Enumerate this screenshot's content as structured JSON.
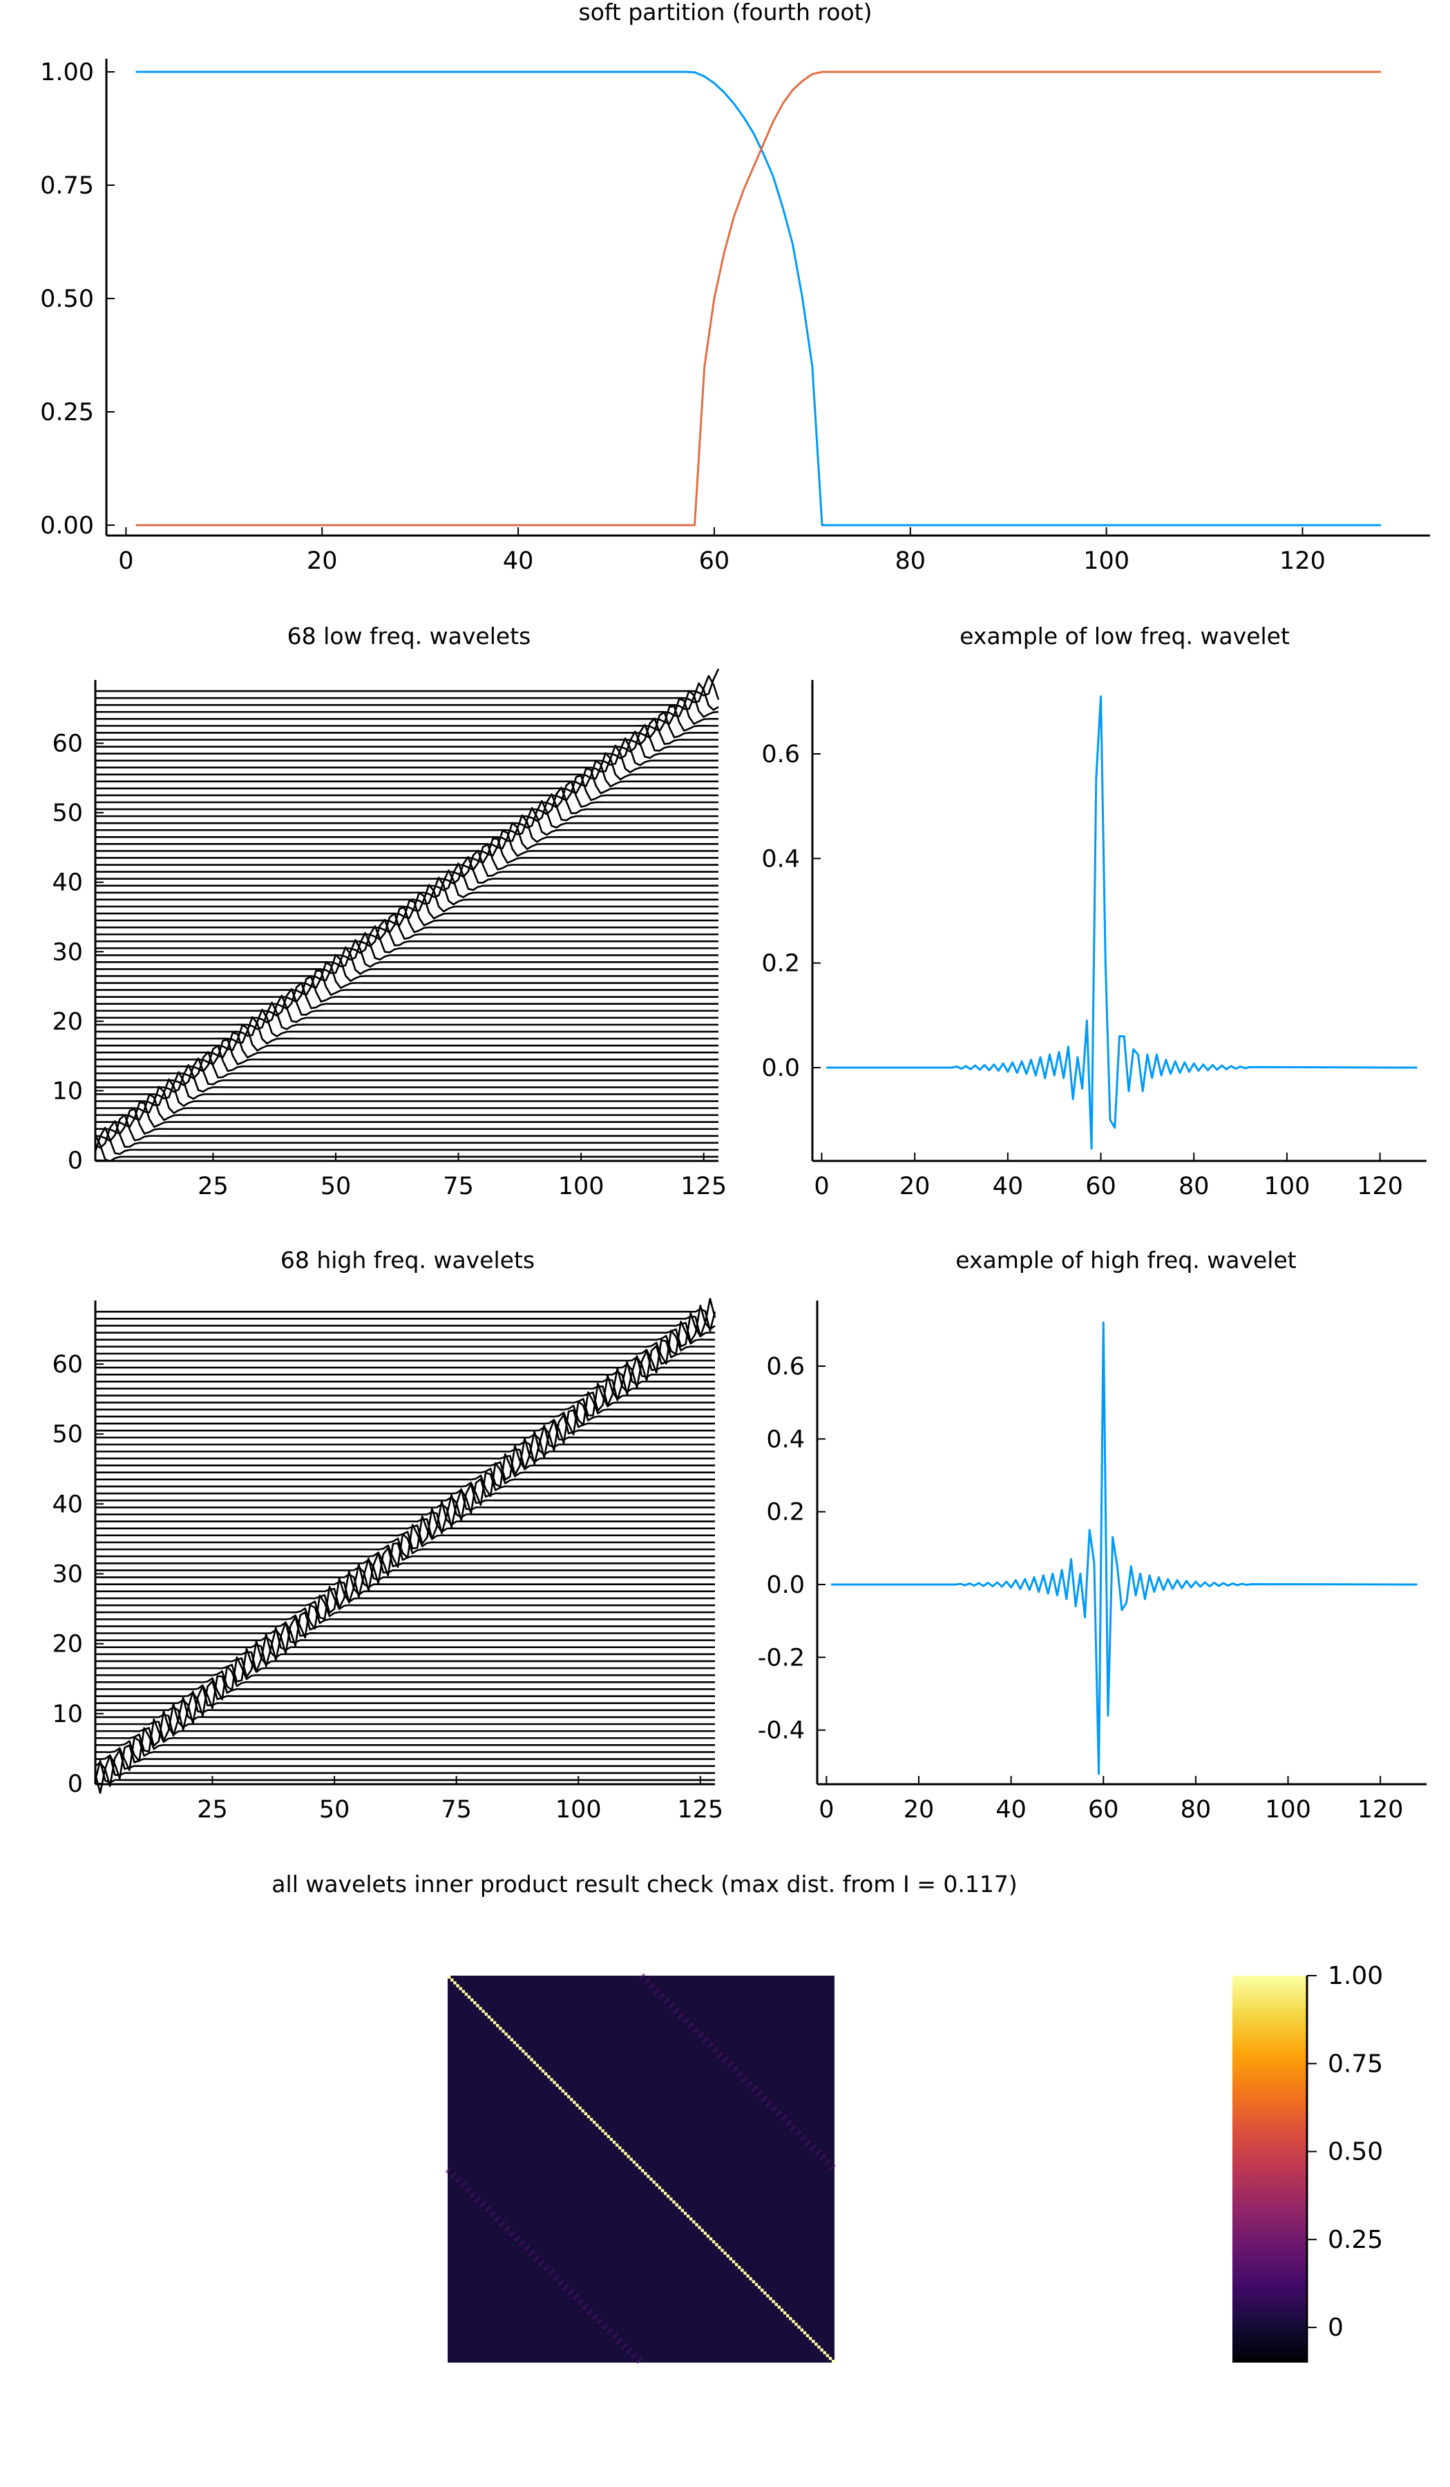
{
  "chart_data": [
    {
      "type": "line",
      "title": "soft partition (fourth root)",
      "xlim": [
        -2,
        133
      ],
      "ylim": [
        -0.05,
        1.02
      ],
      "xticks": [
        0,
        20,
        40,
        60,
        80,
        100,
        120
      ],
      "yticks": [
        0.0,
        0.25,
        0.5,
        0.75,
        1.0
      ],
      "ytick_labels": [
        "0.00",
        "0.25",
        "0.50",
        "0.75",
        "1.00"
      ],
      "grid": false,
      "legend": "none",
      "series": [
        {
          "color": "#009AFA",
          "x": [
            1,
            57,
            58,
            59,
            60,
            61,
            62,
            63,
            64,
            65,
            66,
            67,
            68,
            69,
            70,
            71,
            128
          ],
          "y": [
            1,
            1,
            0.999,
            0.99,
            0.975,
            0.955,
            0.93,
            0.9,
            0.865,
            0.82,
            0.77,
            0.7,
            0.62,
            0.5,
            0.35,
            0.0,
            0.0
          ]
        },
        {
          "color": "#E26F46",
          "x": [
            1,
            58,
            59,
            60,
            61,
            62,
            63,
            64,
            65,
            66,
            67,
            68,
            69,
            70,
            71,
            128
          ],
          "y": [
            0,
            0,
            0.35,
            0.5,
            0.6,
            0.68,
            0.74,
            0.79,
            0.84,
            0.89,
            0.93,
            0.96,
            0.98,
            0.995,
            1.0,
            1.0
          ]
        }
      ]
    },
    {
      "type": "line",
      "title": "68 low freq. wavelets",
      "count": 68,
      "length": 128,
      "xlim": [
        1,
        128
      ],
      "ylim": [
        0,
        69
      ],
      "xticks": [
        25,
        50,
        75,
        100,
        125
      ],
      "yticks": [
        0,
        10,
        20,
        30,
        40,
        50,
        60
      ],
      "grid": false,
      "legend": "none",
      "line_color": "#000000"
    },
    {
      "type": "line",
      "title": "example of low freq. wavelet",
      "xlim": [
        -2,
        130
      ],
      "ylim": [
        -0.18,
        0.72
      ],
      "xticks": [
        0,
        20,
        40,
        60,
        80,
        100,
        120
      ],
      "yticks": [
        0.0,
        0.2,
        0.4,
        0.6
      ],
      "ytick_labels": [
        "0.0",
        "0.2",
        "0.4",
        "0.6"
      ],
      "grid": false,
      "legend": "none",
      "series": [
        {
          "color": "#009AFA",
          "x": [
            1,
            28,
            29,
            30,
            31,
            32,
            33,
            34,
            35,
            36,
            37,
            38,
            39,
            40,
            41,
            42,
            43,
            44,
            45,
            46,
            47,
            48,
            49,
            50,
            51,
            52,
            53,
            54,
            55,
            56,
            57,
            58,
            59,
            60,
            61,
            62,
            63,
            64,
            65,
            66,
            67,
            68,
            69,
            70,
            71,
            72,
            73,
            74,
            75,
            76,
            77,
            78,
            79,
            80,
            81,
            82,
            83,
            84,
            85,
            86,
            87,
            88,
            89,
            90,
            91,
            92,
            128
          ],
          "y": [
            0.0,
            0.0,
            0.002,
            -0.002,
            0.003,
            -0.003,
            0.004,
            -0.004,
            0.005,
            -0.005,
            0.006,
            -0.006,
            0.008,
            -0.008,
            0.01,
            -0.01,
            0.012,
            -0.012,
            0.015,
            -0.015,
            0.02,
            -0.02,
            0.025,
            -0.015,
            0.03,
            -0.02,
            0.04,
            -0.06,
            0.02,
            -0.04,
            0.09,
            -0.155,
            0.555,
            0.71,
            0.2,
            -0.1,
            -0.115,
            0.06,
            0.06,
            -0.045,
            0.035,
            0.025,
            -0.045,
            0.025,
            -0.02,
            0.025,
            -0.015,
            0.015,
            -0.012,
            0.012,
            -0.01,
            0.01,
            -0.008,
            0.008,
            -0.006,
            0.006,
            -0.005,
            0.005,
            -0.004,
            0.004,
            -0.003,
            0.003,
            -0.002,
            0.002,
            -0.001,
            0.001,
            0.0
          ]
        }
      ]
    },
    {
      "type": "line",
      "title": "68 high freq. wavelets",
      "count": 68,
      "length": 128,
      "xlim": [
        1,
        128
      ],
      "ylim": [
        0,
        69
      ],
      "xticks": [
        25,
        50,
        75,
        100,
        125
      ],
      "yticks": [
        0,
        10,
        20,
        30,
        40,
        50,
        60
      ],
      "grid": false,
      "legend": "none",
      "line_color": "#000000"
    },
    {
      "type": "line",
      "title": "example of high freq. wavelet",
      "xlim": [
        -2,
        130
      ],
      "ylim": [
        -0.55,
        0.76
      ],
      "xticks": [
        0,
        20,
        40,
        60,
        80,
        100,
        120
      ],
      "yticks": [
        -0.4,
        -0.2,
        0.0,
        0.2,
        0.4,
        0.6
      ],
      "ytick_labels": [
        "-0.4",
        "-0.2",
        "0.0",
        "0.2",
        "0.4",
        "0.6"
      ],
      "grid": false,
      "legend": "none",
      "series": [
        {
          "color": "#009AFA",
          "x": [
            1,
            28,
            29,
            30,
            31,
            32,
            33,
            34,
            35,
            36,
            37,
            38,
            39,
            40,
            41,
            42,
            43,
            44,
            45,
            46,
            47,
            48,
            49,
            50,
            51,
            52,
            53,
            54,
            55,
            56,
            57,
            58,
            59,
            60,
            61,
            62,
            63,
            64,
            65,
            66,
            67,
            68,
            69,
            70,
            71,
            72,
            73,
            74,
            75,
            76,
            77,
            78,
            79,
            80,
            81,
            82,
            83,
            84,
            85,
            86,
            87,
            88,
            89,
            90,
            91,
            92,
            128
          ],
          "y": [
            0.0,
            0.0,
            0.002,
            -0.002,
            0.003,
            -0.003,
            0.004,
            -0.004,
            0.005,
            -0.005,
            0.006,
            -0.006,
            0.008,
            -0.008,
            0.012,
            -0.012,
            0.015,
            -0.015,
            0.02,
            -0.02,
            0.025,
            -0.025,
            0.03,
            -0.03,
            0.04,
            -0.04,
            0.07,
            -0.06,
            0.03,
            -0.09,
            0.15,
            0.06,
            -0.52,
            0.72,
            -0.36,
            0.13,
            0.05,
            -0.07,
            -0.05,
            0.05,
            -0.03,
            0.03,
            -0.04,
            0.025,
            -0.02,
            0.02,
            -0.015,
            0.015,
            -0.012,
            0.012,
            -0.01,
            0.01,
            -0.008,
            0.008,
            -0.006,
            0.006,
            -0.005,
            0.005,
            -0.004,
            0.004,
            -0.003,
            0.003,
            -0.002,
            0.002,
            -0.001,
            0.001,
            0.0
          ]
        }
      ]
    },
    {
      "type": "heatmap",
      "title": "all wavelets inner product result check (max dist. from I = 0.117)",
      "size": 136,
      "diagonal_value": 1.0,
      "offdiagonal_value": 0.0,
      "max_dist": 0.117,
      "colormap": "inferno",
      "color_range": [
        -0.1,
        1.0
      ],
      "colorbar_ticks": [
        0,
        0.25,
        0.5,
        0.75,
        1.0
      ],
      "colorbar_tick_labels": [
        "0",
        "0.25",
        "0.50",
        "0.75",
        "1.00"
      ]
    }
  ]
}
